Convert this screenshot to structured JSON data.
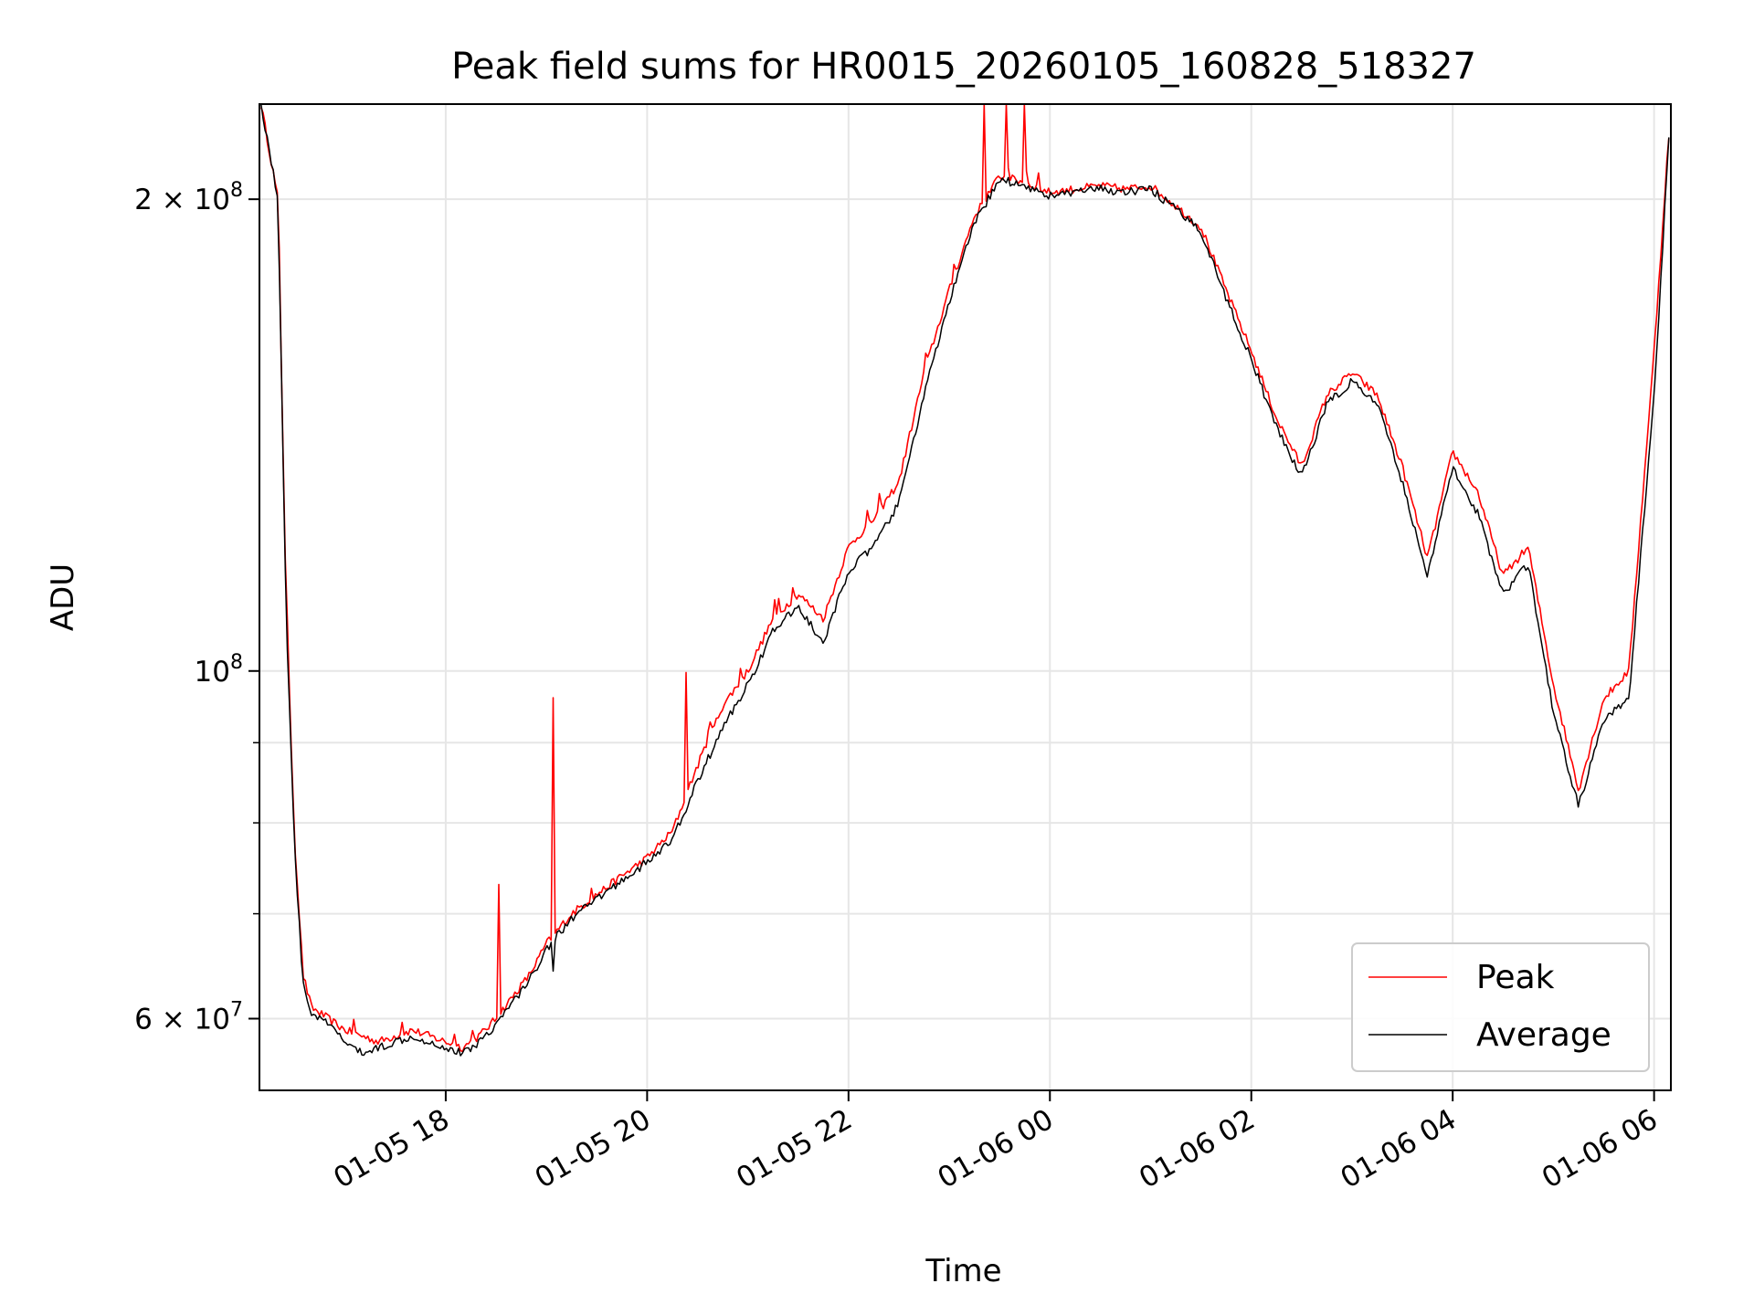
{
  "chart_data": {
    "type": "line",
    "title": "Peak field sums for HR0015_20260105_160828_518327",
    "xlabel": "Time",
    "ylabel": "ADU",
    "yscale": "log",
    "xlim": [
      "01-05 16:09",
      "01-06 06:10"
    ],
    "ylim": [
      54000000,
      230000000
    ],
    "grid": true,
    "legend_position": "lower-right",
    "x_ticks": [
      "01-05 18",
      "01-05 20",
      "01-05 22",
      "01-06 00",
      "01-06 02",
      "01-06 04",
      "01-06 06"
    ],
    "y_ticks": [
      {
        "value": 200000000,
        "mantissa": "2",
        "exponent": "8"
      },
      {
        "value": 100000000,
        "mantissa": "",
        "exponent": "8"
      },
      {
        "value": 60000000,
        "mantissa": "6",
        "exponent": "7"
      }
    ],
    "series": [
      {
        "name": "Peak",
        "color": "#ff0000",
        "x": [
          "01-05 16:10",
          "01-05 16:20",
          "01-05 16:25",
          "01-05 16:30",
          "01-05 16:35",
          "01-05 16:40",
          "01-05 16:50",
          "01-05 17:00",
          "01-05 17:10",
          "01-05 17:20",
          "01-05 17:30",
          "01-05 17:40",
          "01-05 17:50",
          "01-05 18:00",
          "01-05 18:10",
          "01-05 18:20",
          "01-05 18:30",
          "01-05 18:40",
          "01-05 18:50",
          "01-05 19:00",
          "01-05 19:15",
          "01-05 19:30",
          "01-05 19:45",
          "01-05 20:00",
          "01-05 20:15",
          "01-05 20:30",
          "01-05 20:45",
          "01-05 21:00",
          "01-05 21:15",
          "01-05 21:30",
          "01-05 21:45",
          "01-05 22:00",
          "01-05 22:15",
          "01-05 22:30",
          "01-05 22:45",
          "01-05 23:00",
          "01-05 23:15",
          "01-05 23:30",
          "01-05 23:45",
          "01-06 00:00",
          "01-06 00:15",
          "01-06 00:30",
          "01-06 00:45",
          "01-06 01:00",
          "01-06 01:15",
          "01-06 01:30",
          "01-06 01:45",
          "01-06 02:00",
          "01-06 02:15",
          "01-06 02:30",
          "01-06 02:45",
          "01-06 03:00",
          "01-06 03:15",
          "01-06 03:30",
          "01-06 03:45",
          "01-06 04:00",
          "01-06 04:15",
          "01-06 04:30",
          "01-06 04:45",
          "01-06 05:00",
          "01-06 05:15",
          "01-06 05:30",
          "01-06 05:45",
          "01-06 06:00",
          "01-06 06:10"
        ],
        "y": [
          230000000,
          200000000,
          110000000,
          78000000,
          64000000,
          61000000,
          60000000,
          59000000,
          58500000,
          58000000,
          58500000,
          59000000,
          58500000,
          58000000,
          57500000,
          58500000,
          60000000,
          62000000,
          64000000,
          67000000,
          70000000,
          72000000,
          74000000,
          76000000,
          79000000,
          87000000,
          95000000,
          100000000,
          108000000,
          112000000,
          108000000,
          120000000,
          125000000,
          132000000,
          155000000,
          175000000,
          195000000,
          207000000,
          205000000,
          202000000,
          203000000,
          204000000,
          203000000,
          204000000,
          198000000,
          192000000,
          175000000,
          160000000,
          145000000,
          135000000,
          150000000,
          155000000,
          150000000,
          135000000,
          118000000,
          138000000,
          130000000,
          115000000,
          120000000,
          98000000,
          84000000,
          96000000,
          100000000,
          160000000,
          230000000
        ]
      },
      {
        "name": "Average",
        "color": "#000000",
        "x": [
          "01-05 16:10",
          "01-05 16:20",
          "01-05 16:25",
          "01-05 16:30",
          "01-05 16:35",
          "01-05 16:40",
          "01-05 16:50",
          "01-05 17:00",
          "01-05 17:10",
          "01-05 17:20",
          "01-05 17:30",
          "01-05 17:40",
          "01-05 17:50",
          "01-05 18:00",
          "01-05 18:10",
          "01-05 18:20",
          "01-05 18:30",
          "01-05 18:40",
          "01-05 18:50",
          "01-05 19:00",
          "01-05 19:15",
          "01-05 19:30",
          "01-05 19:45",
          "01-05 20:00",
          "01-05 20:15",
          "01-05 20:30",
          "01-05 20:45",
          "01-05 21:00",
          "01-05 21:15",
          "01-05 21:30",
          "01-05 21:45",
          "01-05 22:00",
          "01-05 22:15",
          "01-05 22:30",
          "01-05 22:45",
          "01-05 23:00",
          "01-05 23:15",
          "01-05 23:30",
          "01-05 23:45",
          "01-06 00:00",
          "01-06 00:15",
          "01-06 00:30",
          "01-06 00:45",
          "01-06 01:00",
          "01-06 01:15",
          "01-06 01:30",
          "01-06 01:45",
          "01-06 02:00",
          "01-06 02:15",
          "01-06 02:30",
          "01-06 02:45",
          "01-06 03:00",
          "01-06 03:15",
          "01-06 03:30",
          "01-06 03:45",
          "01-06 04:00",
          "01-06 04:15",
          "01-06 04:30",
          "01-06 04:45",
          "01-06 05:00",
          "01-06 05:15",
          "01-06 05:30",
          "01-06 05:45",
          "01-06 06:00",
          "01-06 06:10"
        ],
        "y": [
          230000000,
          200000000,
          108000000,
          77000000,
          63000000,
          60500000,
          59500000,
          58000000,
          57000000,
          57500000,
          58000000,
          58500000,
          58000000,
          57500000,
          57000000,
          58000000,
          59500000,
          61500000,
          63500000,
          66500000,
          69500000,
          71500000,
          73500000,
          75500000,
          78000000,
          85000000,
          92000000,
          98000000,
          106000000,
          110000000,
          104000000,
          116000000,
          120000000,
          128000000,
          150000000,
          172000000,
          193000000,
          206000000,
          204000000,
          201000000,
          202000000,
          203000000,
          202000000,
          203000000,
          197000000,
          191000000,
          173000000,
          158000000,
          143000000,
          133000000,
          148000000,
          153000000,
          148000000,
          132000000,
          115000000,
          135000000,
          126000000,
          112000000,
          117000000,
          94000000,
          82000000,
          93000000,
          96000000,
          150000000,
          230000000
        ]
      }
    ]
  }
}
